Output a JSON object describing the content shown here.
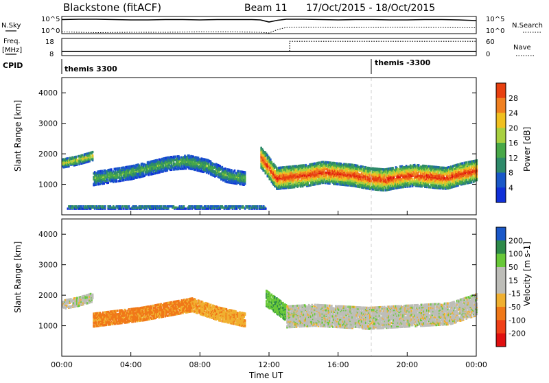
{
  "header": {
    "title": "Blackstone (fitACF)",
    "beam": "Beam 11",
    "dates": "17/Oct/2015 - 18/Oct/2015"
  },
  "top_panels": {
    "nsky_label": "N.Sky",
    "nsky_ticks": [
      "10^5",
      "10^0"
    ],
    "nsearch_label": "N.Search",
    "nsearch_ticks": [
      "10^5",
      "10^0"
    ],
    "freq_label": "Freq.",
    "freq_unit": "[MHz]",
    "freq_ticks": [
      "18",
      "8"
    ],
    "nave_label": "Nave",
    "nave_ticks": [
      "60",
      "0"
    ],
    "cpid_label": "CPID",
    "cpid_entries": [
      {
        "name": "themis 3300",
        "start_hour": 0
      },
      {
        "name": "themis -3300",
        "start_hour": 18
      }
    ]
  },
  "colors": {
    "power_scale": [
      "#1030d8",
      "#1a58c8",
      "#2e8a6a",
      "#48a848",
      "#a8d040",
      "#f0c020",
      "#f08020",
      "#e84010",
      "#e01010"
    ],
    "velocity_scale": [
      "#e01010",
      "#f04018",
      "#f07818",
      "#f0b030",
      "#bdbdb8",
      "#bdbdb8",
      "#68c838",
      "#2e8a4a",
      "#1a58c8",
      "#1030c0"
    ],
    "cpid_change_line": "#cfcfcf"
  },
  "chart_data": [
    {
      "type": "line",
      "panel": "N.Sky / N.Search",
      "x_unit": "hours UT",
      "series": [
        {
          "name": "N.Sky",
          "x": [
            0,
            1,
            2,
            3,
            4,
            5,
            6,
            7,
            8,
            9,
            10,
            11,
            11.5,
            12,
            12.5,
            13,
            14,
            15,
            16,
            17,
            18,
            19,
            20,
            21,
            22,
            23,
            24
          ],
          "values": [
            4.1,
            4.2,
            4.2,
            4.1,
            4.0,
            4.0,
            4.1,
            4.1,
            4.0,
            4.1,
            4.1,
            4.1,
            4.0,
            3.4,
            3.9,
            4.2,
            4.2,
            4.1,
            4.0,
            4.1,
            4.1,
            4.0,
            4.0,
            4.1,
            4.1,
            4.0,
            3.8
          ]
        },
        {
          "name": "N.Search",
          "x": [
            0,
            2,
            4,
            6,
            8,
            10,
            11.5,
            12,
            12.5,
            13,
            14,
            16,
            18,
            20,
            22,
            24
          ],
          "values": [
            0.5,
            0.3,
            0.4,
            0.4,
            0.5,
            0.5,
            0.4,
            0.2,
            1.2,
            1.8,
            1.9,
            1.8,
            1.8,
            1.9,
            1.8,
            1.7
          ]
        }
      ],
      "ylim": [
        0,
        5
      ]
    },
    {
      "type": "line",
      "panel": "Freq. / Nave",
      "x_unit": "hours UT",
      "series": [
        {
          "name": "Freq.",
          "x": [
            0,
            13.2,
            13.2,
            24
          ],
          "values": [
            10.5,
            10.5,
            10.5,
            10.5
          ],
          "ylim": [
            8,
            18
          ]
        },
        {
          "name": "Nave",
          "x": [
            0,
            13.2,
            13.2,
            24
          ],
          "values": [
            15,
            15,
            50,
            50
          ],
          "ylim": [
            0,
            60
          ]
        }
      ]
    },
    {
      "type": "heatmap",
      "panel": "Power",
      "xlabel": "",
      "ylabel": "Slant Range [km]",
      "xlim": [
        0,
        24
      ],
      "ylim": [
        0,
        4500
      ],
      "yticks": [
        1000,
        2000,
        3000,
        4000
      ],
      "colorbar": {
        "label": "Power [dB]",
        "ticks": [
          4,
          8,
          12,
          16,
          20,
          24,
          28
        ],
        "range": [
          0,
          32
        ]
      },
      "echo_regions": [
        {
          "x_start": 0.0,
          "x_end": 1.8,
          "range_center": [
            1700,
            1800,
            1950
          ],
          "thickness": 300,
          "power": 14
        },
        {
          "x_start": 1.8,
          "x_end": 10.6,
          "range_center": [
            1200,
            1300,
            1400,
            1550,
            1700,
            1750,
            1600,
            1300,
            1200
          ],
          "thickness": 450,
          "power": 10
        },
        {
          "x_start": 11.5,
          "x_end": 24.0,
          "range_center": [
            1900,
            1200,
            1250,
            1300,
            1400,
            1350,
            1300,
            1200,
            1150,
            1250,
            1300,
            1250,
            1200,
            1350,
            1450
          ],
          "thickness": 700,
          "power": 22
        },
        {
          "x_start": 0.3,
          "x_end": 11.8,
          "range_center": [
            250
          ],
          "thickness": 100,
          "power": 9
        }
      ]
    },
    {
      "type": "heatmap",
      "panel": "Velocity",
      "xlabel": "Time UT",
      "ylabel": "Slant Range [km]",
      "xlim": [
        0,
        24
      ],
      "ylim": [
        0,
        4500
      ],
      "xticks": [
        "00:00",
        "04:00",
        "08:00",
        "12:00",
        "16:00",
        "20:00",
        "00:00"
      ],
      "yticks": [
        1000,
        2000,
        3000,
        4000
      ],
      "colorbar": {
        "label": "Velocity [m s^-1]",
        "ticks": [
          200,
          100,
          50,
          15,
          -15,
          -50,
          -100,
          -200
        ],
        "range": [
          -250,
          250
        ]
      },
      "echo_regions": [
        {
          "x_start": 0.0,
          "x_end": 1.8,
          "range_center": [
            1700,
            1800,
            1950
          ],
          "thickness": 300,
          "velocity": 0
        },
        {
          "x_start": 1.8,
          "x_end": 7.5,
          "range_center": [
            1200,
            1300,
            1400,
            1550,
            1700
          ],
          "thickness": 450,
          "velocity": -60
        },
        {
          "x_start": 7.5,
          "x_end": 10.6,
          "range_center": [
            1700,
            1400,
            1200
          ],
          "thickness": 450,
          "velocity": -40
        },
        {
          "x_start": 11.8,
          "x_end": 13.0,
          "range_center": [
            1900,
            1400
          ],
          "thickness": 500,
          "velocity": 40
        },
        {
          "x_start": 13.0,
          "x_end": 24.0,
          "range_center": [
            1300,
            1350,
            1300,
            1250,
            1300,
            1350,
            1400,
            1700
          ],
          "thickness": 700,
          "velocity": 0
        }
      ]
    }
  ],
  "labels": {
    "ylabel": "Slant Range [km]",
    "xlabel": "Time UT",
    "xticks": [
      "00:00",
      "04:00",
      "08:00",
      "12:00",
      "16:00",
      "20:00",
      "00:00"
    ],
    "yticks": [
      "1000",
      "2000",
      "3000",
      "4000"
    ],
    "power_colorbar_label": "Power [dB]",
    "power_ticks": [
      "28",
      "24",
      "20",
      "16",
      "12",
      "8",
      "4"
    ],
    "velocity_colorbar_label": "Velocity [m s-1]",
    "velocity_ticks": [
      "200",
      "100",
      "50",
      "15",
      "-15",
      "-50",
      "-100",
      "-200"
    ]
  }
}
